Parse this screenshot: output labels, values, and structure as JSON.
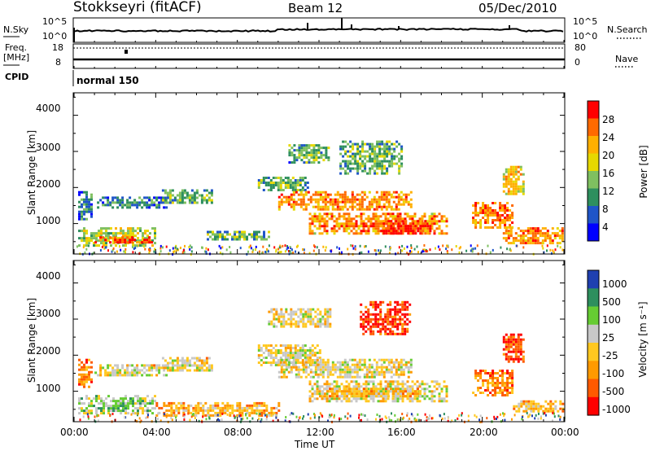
{
  "header": {
    "station": "Stokkseyri (fitACF)",
    "beam": "Beam 12",
    "date": "05/Dec/2010"
  },
  "top_panels": {
    "nsky_label": "N.Sky",
    "nsky_ticks": [
      "10^5",
      "10^0"
    ],
    "nsearch_label": "N.Search",
    "nsearch_ticks": [
      "10^5",
      "10^0"
    ],
    "freq_label": "Freq.",
    "freq_unit": "[MHz]",
    "freq_ticks": [
      "18",
      "8"
    ],
    "nave_label": "Nave",
    "nave_ticks": [
      "80",
      "0"
    ],
    "cpid_label": "CPID",
    "cpid_value": "normal 150"
  },
  "chart_data": [
    {
      "type": "heatmap",
      "name": "power",
      "ylabel": "Slant Range [km]",
      "yticks": [
        "4000",
        "3000",
        "2000",
        "1000"
      ],
      "ylim": [
        180,
        4600
      ],
      "xlim": [
        0,
        24
      ],
      "colorbar_label": "Power [dB]",
      "colorbar_ticks": [
        "28",
        "24",
        "20",
        "16",
        "12",
        "8",
        "4"
      ],
      "colors": [
        "#ff0000",
        "#ff6a00",
        "#ffb000",
        "#e6d800",
        "#7fc060",
        "#2e8f5e",
        "#1f55c8",
        "#0000ff"
      ],
      "regions": [
        {
          "t0": 0.2,
          "t1": 4.0,
          "r0": 400,
          "r1": 900,
          "level": 3
        },
        {
          "t0": 1.0,
          "t1": 3.8,
          "r0": 450,
          "r1": 650,
          "level": 0
        },
        {
          "t0": 0.2,
          "t1": 0.8,
          "r0": 1100,
          "r1": 1900,
          "level": 5
        },
        {
          "t0": 1.0,
          "t1": 4.5,
          "r0": 1450,
          "r1": 1750,
          "level": 5
        },
        {
          "t0": 4.3,
          "t1": 6.7,
          "r0": 1550,
          "r1": 1950,
          "level": 4
        },
        {
          "t0": 6.5,
          "t1": 9.5,
          "r0": 550,
          "r1": 800,
          "level": 4
        },
        {
          "t0": 9.0,
          "t1": 11.5,
          "r0": 1900,
          "r1": 2300,
          "level": 4
        },
        {
          "t0": 10.0,
          "t1": 16.5,
          "r0": 1400,
          "r1": 1900,
          "level": 1
        },
        {
          "t0": 11.5,
          "t1": 18.3,
          "r0": 750,
          "r1": 1300,
          "level": 1
        },
        {
          "t0": 15.0,
          "t1": 17.5,
          "r0": 700,
          "r1": 1100,
          "level": 0
        },
        {
          "t0": 13.0,
          "t1": 16.0,
          "r0": 2400,
          "r1": 3300,
          "level": 4
        },
        {
          "t0": 10.5,
          "t1": 12.5,
          "r0": 2700,
          "r1": 3200,
          "level": 4
        },
        {
          "t0": 19.5,
          "t1": 21.5,
          "r0": 900,
          "r1": 1600,
          "level": 1
        },
        {
          "t0": 21.0,
          "t1": 23.9,
          "r0": 450,
          "r1": 900,
          "level": 1
        },
        {
          "t0": 21.0,
          "t1": 22.0,
          "r0": 1800,
          "r1": 2600,
          "level": 2
        }
      ]
    },
    {
      "type": "heatmap",
      "name": "velocity",
      "ylabel": "Slant Range [km]",
      "yticks": [
        "4000",
        "3000",
        "2000",
        "1000"
      ],
      "ylim": [
        180,
        4600
      ],
      "xlim": [
        0,
        24
      ],
      "xticks": [
        "00:00",
        "04:00",
        "08:00",
        "12:00",
        "16:00",
        "20:00",
        "00:00"
      ],
      "xlabel": "Time UT",
      "colorbar_label": "Velocity [m s⁻¹]",
      "colorbar_ticks": [
        "1000",
        "500",
        "100",
        "25",
        "-25",
        "-100",
        "-500",
        "-1000"
      ],
      "colors": [
        "#1f40b0",
        "#2e8f5e",
        "#66cc33",
        "#c8c8c8",
        "#ffc820",
        "#ff9a00",
        "#ff5a00",
        "#ff0000"
      ],
      "regions": [
        {
          "t0": 0.2,
          "t1": 4.0,
          "r0": 400,
          "r1": 900,
          "level": 2
        },
        {
          "t0": 0.2,
          "t1": 0.8,
          "r0": 1100,
          "r1": 1900,
          "level": 5
        },
        {
          "t0": 1.0,
          "t1": 4.5,
          "r0": 1450,
          "r1": 1750,
          "level": 3
        },
        {
          "t0": 4.3,
          "t1": 6.7,
          "r0": 1550,
          "r1": 1950,
          "level": 3
        },
        {
          "t0": 4.0,
          "t1": 10.0,
          "r0": 350,
          "r1": 700,
          "level": 4
        },
        {
          "t0": 9.0,
          "t1": 12.0,
          "r0": 1700,
          "r1": 2300,
          "level": 3
        },
        {
          "t0": 10.0,
          "t1": 16.5,
          "r0": 1400,
          "r1": 1900,
          "level": 3
        },
        {
          "t0": 11.5,
          "t1": 18.3,
          "r0": 700,
          "r1": 1300,
          "level": 3
        },
        {
          "t0": 12.0,
          "t1": 17.0,
          "r0": 850,
          "r1": 1100,
          "level": 4
        },
        {
          "t0": 14.0,
          "t1": 16.5,
          "r0": 2600,
          "r1": 3500,
          "level": 6
        },
        {
          "t0": 9.5,
          "t1": 12.5,
          "r0": 2800,
          "r1": 3300,
          "level": 3
        },
        {
          "t0": 19.5,
          "t1": 21.5,
          "r0": 900,
          "r1": 1600,
          "level": 5
        },
        {
          "t0": 21.5,
          "t1": 23.9,
          "r0": 450,
          "r1": 750,
          "level": 4
        },
        {
          "t0": 21.0,
          "t1": 22.0,
          "r0": 1800,
          "r1": 2600,
          "level": 6
        }
      ]
    }
  ]
}
